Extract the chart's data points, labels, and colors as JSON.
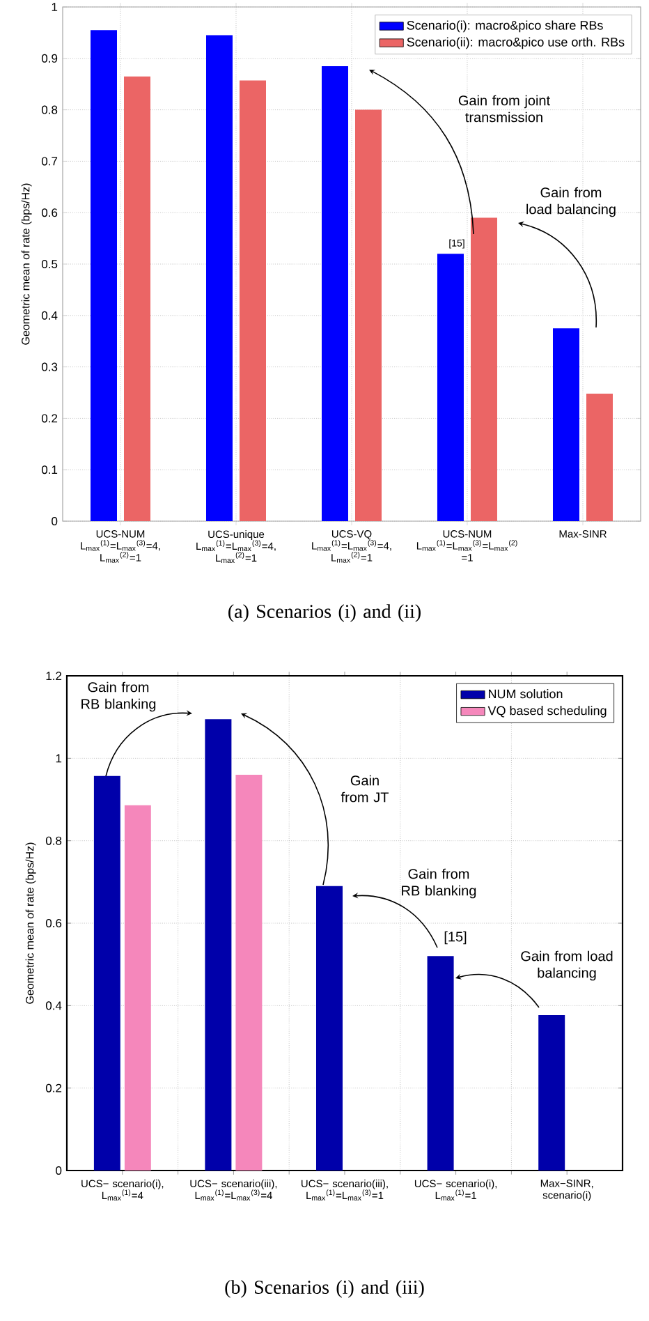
{
  "chart_data": [
    {
      "type": "bar",
      "ylabel": "Geometric mean of rate (bps/Hz)",
      "categories": [
        "UCS-NUM L$_{max}$$^{(1)}$=L$_{max}$$^{(3)}$=4, L$_{max}$$^{(2)}$=1",
        "UCS-unique L$_{max}$$^{(1)}$=L$_{max}$$^{(3)}$=4, L$_{max}$$^{(2)}$=1",
        "UCS-VQ L$_{max}$$^{(1)}$=L$_{max}$$^{(3)}$=4, L$_{max}$$^{(2)}$=1",
        "UCS-NUM L$_{max}$$^{(1)}$=L$_{max}$$^{(3)}$=L$_{max}$$^{(2)}$ =1",
        "Max-SINR"
      ],
      "series": [
        {
          "name": "Scenario(i): macro&pico share RBs",
          "color": "#0000ff",
          "values": [
            0.955,
            0.945,
            0.885,
            0.52,
            0.375
          ]
        },
        {
          "name": "Scenario(ii): macro&pico use orth. RBs",
          "color": "#eb6565",
          "values": [
            0.865,
            0.857,
            0.8,
            0.59,
            0.248
          ]
        }
      ],
      "ylim": [
        0,
        1
      ],
      "yticks": [
        0,
        0.1,
        0.2,
        0.3,
        0.4,
        0.5,
        0.6,
        0.7,
        0.8,
        0.9,
        1
      ],
      "grid": true,
      "legend": "top right",
      "annotations": [
        "Gain from joint transmission",
        "Gain from load balancing",
        "[15]",
        "(a) Scenarios (i) and (ii)"
      ]
    },
    {
      "type": "bar",
      "ylabel": "Geometric mean of rate (bps/Hz)",
      "categories": [
        "UCS− scenario(i), L$_{max}$$^{(1)}$=4",
        "UCS− scenario(iii), L$_{max}$$^{(1)}$=L$_{max}$$^{(3)}$=4",
        "UCS− scenario(iii), L$_{max}$$^{(1)}$=L$_{max}$$^{(3)}$=1",
        "UCS− scenario(i), L$_{max}$$^{(1)}$=1",
        "Max−SINR, scenario(i)"
      ],
      "series": [
        {
          "name": "NUM solution",
          "color": "#0000aa",
          "values": [
            0.957,
            1.095,
            0.69,
            0.52,
            0.377
          ]
        },
        {
          "name": "VQ based scheduling",
          "color": "#f587bb",
          "values": [
            0.886,
            0.96,
            null,
            null,
            null
          ]
        }
      ],
      "ylim": [
        0,
        1.2
      ],
      "yticks": [
        0,
        0.2,
        0.4,
        0.6,
        0.8,
        1,
        1.2
      ],
      "grid": true,
      "legend": "top right",
      "annotations": [
        "Gain from RB blanking",
        "Gain from JT",
        "Gain from RB blanking",
        "[15]",
        "Gain from load balancing",
        "(b) Scenarios (i) and (iii)"
      ]
    }
  ]
}
